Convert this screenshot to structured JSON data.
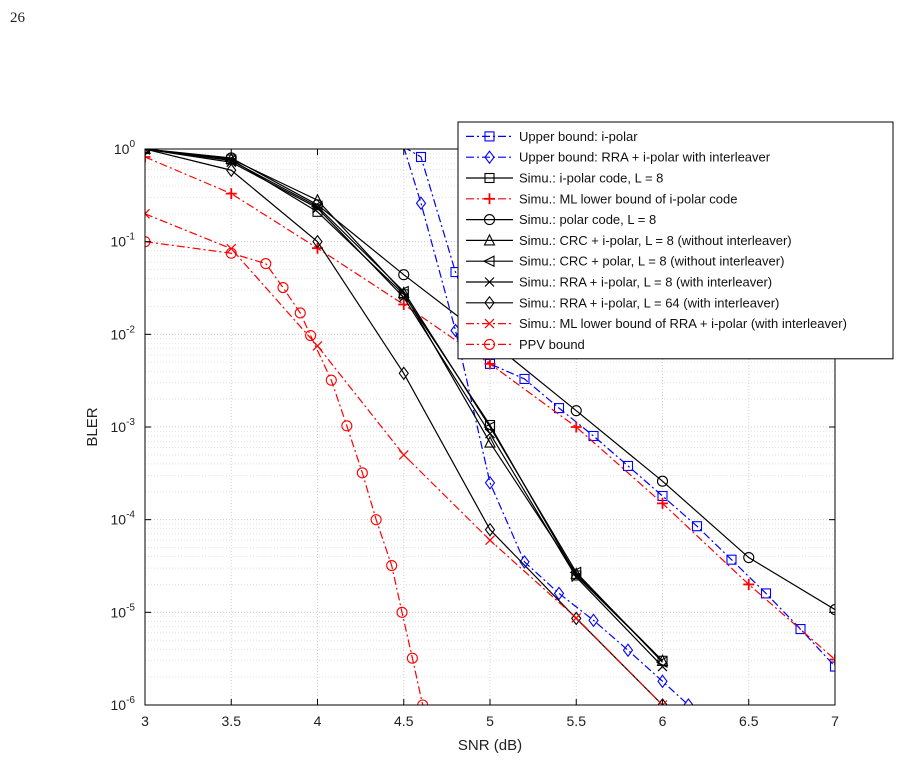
{
  "page": {
    "number": "26"
  },
  "chart_data": {
    "type": "line",
    "xlabel": "SNR (dB)",
    "ylabel": "BLER",
    "xlim": [
      3,
      7
    ],
    "ylim": [
      1e-06,
      1
    ],
    "yscale": "log",
    "grid": true,
    "legend_position": "top-right",
    "xticks": [
      3,
      3.5,
      4,
      4.5,
      5,
      5.5,
      6,
      6.5,
      7
    ],
    "xtick_labels": [
      "3",
      "3.5",
      "4",
      "4.5",
      "5",
      "5.5",
      "6",
      "6.5",
      "7"
    ],
    "yticks": [
      {
        "value": 1,
        "exp": "0"
      },
      {
        "value": 0.1,
        "exp": "-1"
      },
      {
        "value": 0.01,
        "exp": "-2"
      },
      {
        "value": 0.001,
        "exp": "-3"
      },
      {
        "value": 0.0001,
        "exp": "-4"
      },
      {
        "value": 1e-05,
        "exp": "-5"
      },
      {
        "value": 1e-06,
        "exp": "-6"
      }
    ],
    "ytick_base": "10",
    "series": [
      {
        "name": "Upper bound: i-polar",
        "color": "#0000ff",
        "dash": "dashdot",
        "marker": "square",
        "x": [
          4.5,
          4.6,
          4.8,
          5.0,
          5.2,
          5.4,
          5.6,
          5.8,
          6.0,
          6.2,
          6.4,
          6.6,
          6.8,
          7.0
        ],
        "y": [
          1.05,
          0.82,
          0.047,
          0.0048,
          0.0033,
          0.0016,
          0.0008,
          0.00038,
          0.00018,
          8.5e-05,
          3.7e-05,
          1.6e-05,
          6.6e-06,
          2.6e-06
        ]
      },
      {
        "name": "Upper bound: RRA + i-polar with interleaver",
        "color": "#0000ff",
        "dash": "dashdot",
        "marker": "diamond",
        "x": [
          4.5,
          4.6,
          4.8,
          5.0,
          5.2,
          5.4,
          5.6,
          5.8,
          6.0,
          6.15
        ],
        "y": [
          1.05,
          0.26,
          0.011,
          0.00025,
          3.5e-05,
          1.6e-05,
          8.2e-06,
          3.9e-06,
          1.8e-06,
          1e-06
        ]
      },
      {
        "name": "Simu.: i-polar code, L = 8",
        "color": "#000000",
        "dash": "solid",
        "marker": "square",
        "x": [
          3.0,
          3.5,
          4.0,
          4.5,
          5.0,
          5.5,
          6.0
        ],
        "y": [
          1.0,
          0.77,
          0.21,
          0.027,
          0.00105,
          2.5e-05,
          3e-06
        ]
      },
      {
        "name": "Simu.: ML lower bound of i-polar code",
        "color": "#ff0000",
        "dash": "dashdot",
        "marker": "plus",
        "x": [
          3.0,
          3.5,
          4.0,
          4.5,
          5.0,
          5.5,
          6.0,
          6.5,
          7.0
        ],
        "y": [
          0.82,
          0.33,
          0.085,
          0.021,
          0.0048,
          0.001,
          0.00015,
          2e-05,
          3.1e-06
        ]
      },
      {
        "name": "Simu.: polar code, L = 8",
        "color": "#000000",
        "dash": "solid",
        "marker": "circle",
        "x": [
          3.0,
          3.5,
          4.0,
          4.5,
          5.0,
          5.5,
          6.0,
          6.5,
          7.0
        ],
        "y": [
          1.0,
          0.8,
          0.25,
          0.044,
          0.0085,
          0.0015,
          0.00026,
          3.9e-05,
          1.07e-05
        ]
      },
      {
        "name": "Simu.: CRC + i-polar, L = 8 (without interleaver)",
        "color": "#000000",
        "dash": "solid",
        "marker": "triangle-up",
        "x": [
          3.0,
          3.5,
          4.0,
          4.5,
          5.0,
          5.5,
          6.0
        ],
        "y": [
          1.0,
          0.78,
          0.28,
          0.028,
          0.00068,
          2.6e-05,
          3e-06
        ]
      },
      {
        "name": "Simu.: CRC + polar, L = 8 (without interleaver)",
        "color": "#000000",
        "dash": "solid",
        "marker": "triangle-left",
        "x": [
          3.0,
          3.5,
          4.0,
          4.5,
          5.0,
          5.5,
          6.0
        ],
        "y": [
          1.0,
          0.75,
          0.24,
          0.029,
          0.001,
          2.7e-05,
          2.9e-06
        ]
      },
      {
        "name": "Simu.: RRA + i-polar, L = 8 (with interleaver)",
        "color": "#000000",
        "dash": "solid",
        "marker": "x",
        "x": [
          3.0,
          3.5,
          4.0,
          4.5,
          5.0,
          5.5,
          6.0
        ],
        "y": [
          1.0,
          0.72,
          0.23,
          0.025,
          0.00085,
          2.4e-05,
          2.6e-06
        ]
      },
      {
        "name": "Simu.: RRA + i-polar, L = 64 (with interleaver)",
        "color": "#000000",
        "dash": "solid",
        "marker": "diamond",
        "x": [
          3.0,
          3.5,
          4.0,
          4.5,
          5.0,
          5.5,
          6.0
        ],
        "y": [
          1.0,
          0.59,
          0.1,
          0.0038,
          7.8e-05,
          8.6e-06,
          1e-06
        ]
      },
      {
        "name": "Simu.: ML lower bound of RRA + i-polar (with interleaver)",
        "color": "#ff0000",
        "dash": "dashdot",
        "marker": "x",
        "x": [
          3.0,
          3.5,
          4.0,
          4.5,
          5.0,
          5.5,
          6.0
        ],
        "y": [
          0.2,
          0.084,
          0.0075,
          0.0005,
          6e-05,
          8.7e-06,
          1e-06
        ]
      },
      {
        "name": "PPV bound",
        "color": "#ff0000",
        "dash": "dashdot",
        "marker": "circle",
        "x": [
          3.0,
          3.5,
          3.7,
          3.8,
          3.9,
          3.96,
          4.08,
          4.17,
          4.26,
          4.34,
          4.43,
          4.49,
          4.55,
          4.61
        ],
        "y": [
          0.1,
          0.075,
          0.058,
          0.032,
          0.017,
          0.0097,
          0.0032,
          0.00103,
          0.00032,
          0.0001,
          3.2e-05,
          1e-05,
          3.2e-06,
          1e-06
        ]
      }
    ]
  }
}
